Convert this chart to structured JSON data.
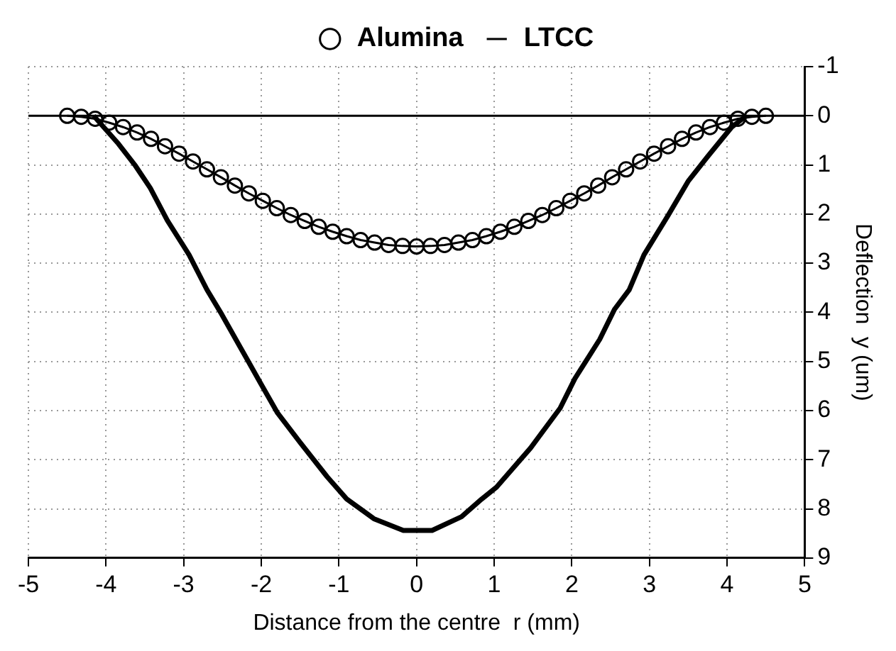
{
  "chart_data": {
    "type": "line",
    "xlabel": "Distance from the centre  r (mm)",
    "ylabel": "Deflection  y (um)",
    "xlim": [
      -5,
      5
    ],
    "xticks": [
      -5,
      -4,
      -3,
      -2,
      -1,
      0,
      1,
      2,
      3,
      4,
      5
    ],
    "ylim": [
      9,
      -1
    ],
    "yticks": [
      -1,
      0,
      1,
      2,
      3,
      4,
      5,
      6,
      7,
      8,
      9
    ],
    "grid": true,
    "legend": "top",
    "ref_lines": [
      {
        "axis": "y",
        "value": 0,
        "color": "#000000"
      }
    ],
    "series": [
      {
        "name": "Alumina",
        "color": "#000000",
        "marker": "circle",
        "x": [
          -4.5,
          -4.32,
          -4.14,
          -3.96,
          -3.78,
          -3.6,
          -3.42,
          -3.24,
          -3.06,
          -2.88,
          -2.7,
          -2.52,
          -2.34,
          -2.16,
          -1.98,
          -1.8,
          -1.62,
          -1.44,
          -1.26,
          -1.08,
          -0.9,
          -0.72,
          -0.54,
          -0.36,
          -0.18,
          0,
          0.18,
          0.36,
          0.54,
          0.72,
          0.9,
          1.08,
          1.26,
          1.44,
          1.62,
          1.8,
          1.98,
          2.16,
          2.34,
          2.52,
          2.7,
          2.88,
          3.06,
          3.24,
          3.42,
          3.6,
          3.78,
          3.96,
          4.14,
          4.32,
          4.5
        ],
        "values": [
          0,
          0.02,
          0.06,
          0.14,
          0.23,
          0.34,
          0.47,
          0.62,
          0.77,
          0.93,
          1.09,
          1.25,
          1.42,
          1.58,
          1.73,
          1.88,
          2.02,
          2.14,
          2.26,
          2.36,
          2.45,
          2.53,
          2.58,
          2.63,
          2.65,
          2.66,
          2.65,
          2.63,
          2.58,
          2.53,
          2.45,
          2.36,
          2.26,
          2.14,
          2.02,
          1.88,
          1.73,
          1.58,
          1.42,
          1.25,
          1.09,
          0.93,
          0.77,
          0.62,
          0.47,
          0.34,
          0.23,
          0.14,
          0.06,
          0.02,
          0
        ]
      },
      {
        "name": "LTCC",
        "color": "#000000",
        "marker": "none",
        "x": [
          -4.16,
          -3.84,
          -3.62,
          -3.43,
          -3.21,
          -2.93,
          -2.7,
          -2.51,
          -2.26,
          -2.01,
          -1.79,
          -1.5,
          -1.15,
          -0.9,
          -0.55,
          -0.17,
          0.2,
          0.58,
          0.84,
          1.03,
          1.47,
          1.85,
          2.04,
          2.36,
          2.55,
          2.74,
          2.93,
          3.24,
          3.5,
          3.75,
          4.06,
          4.25
        ],
        "values": [
          0,
          0.57,
          1.02,
          1.47,
          2.13,
          2.83,
          3.54,
          4.04,
          4.74,
          5.44,
          6.05,
          6.65,
          7.35,
          7.8,
          8.2,
          8.44,
          8.44,
          8.16,
          7.8,
          7.56,
          6.76,
          5.95,
          5.35,
          4.55,
          3.94,
          3.54,
          2.83,
          2.03,
          1.33,
          0.83,
          0.23,
          0
        ]
      }
    ]
  }
}
